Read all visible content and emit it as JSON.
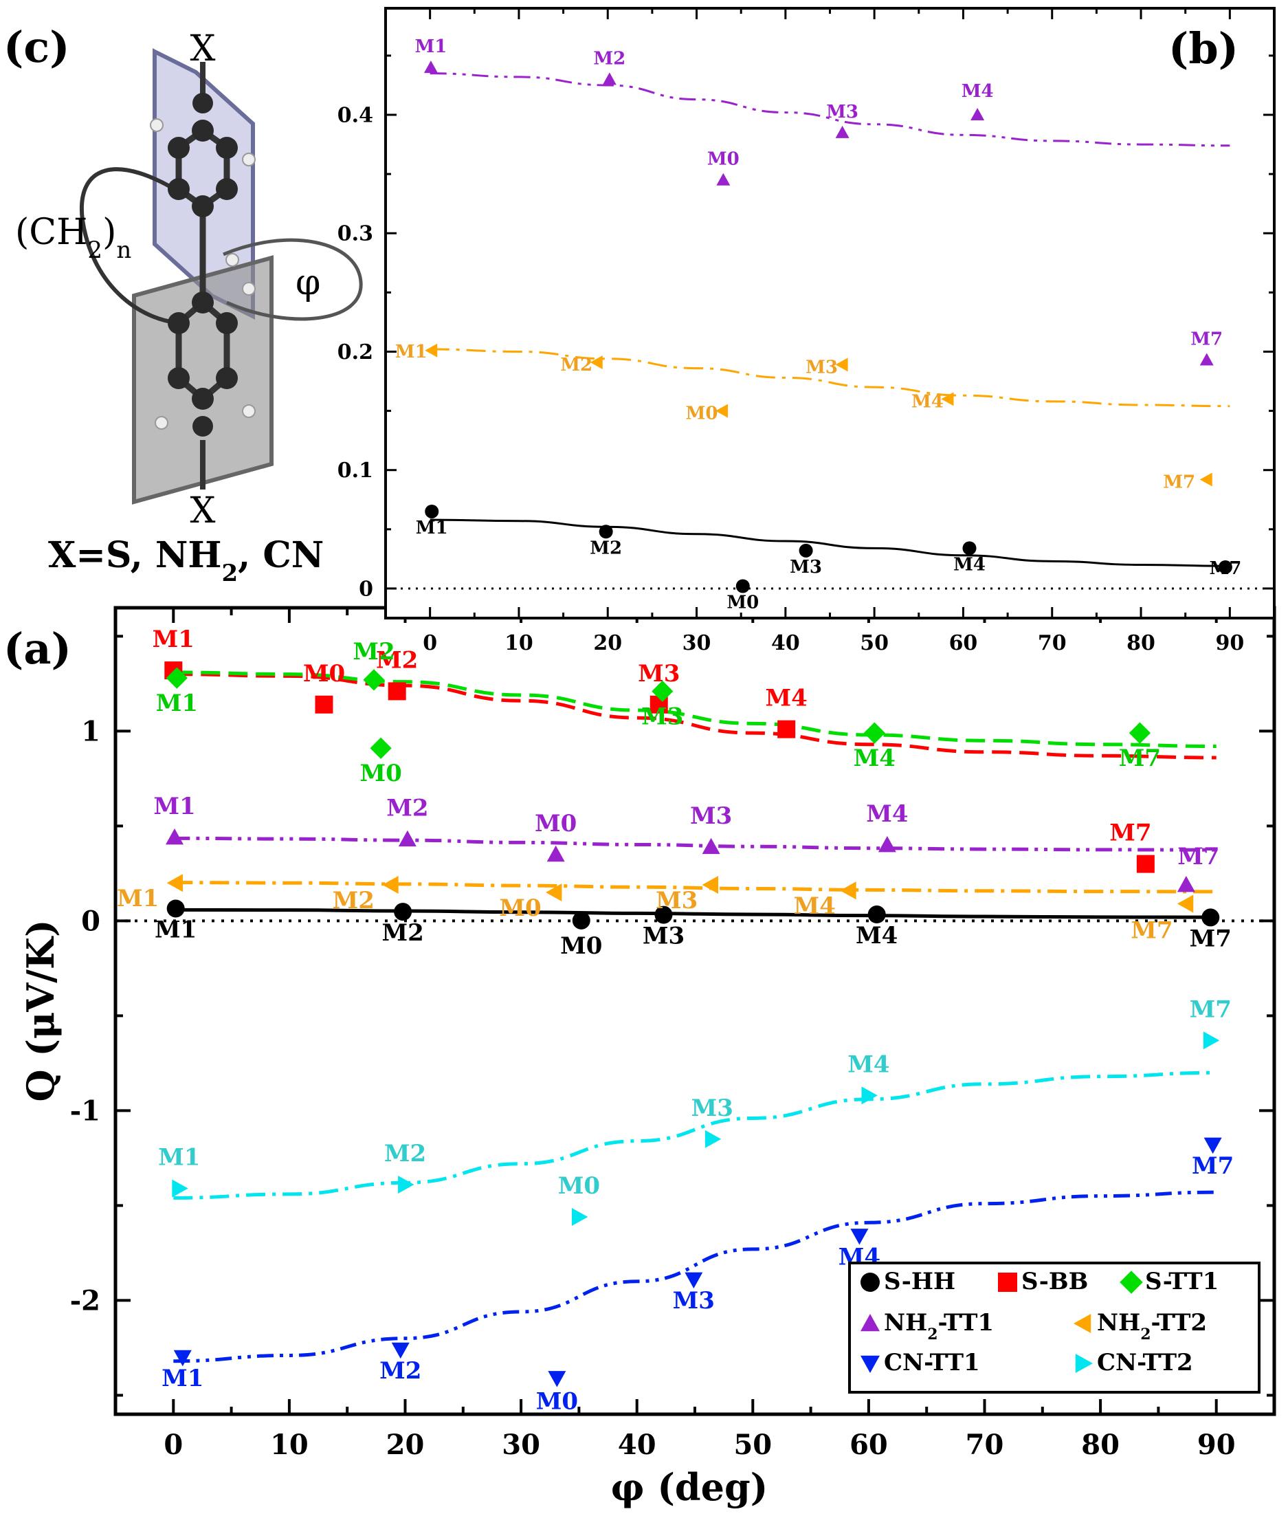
{
  "colors": {
    "S-HH": "#000000",
    "S-BB": "#ff0000",
    "S-TT1": "#00dd00",
    "NH2-TT1": "#9922cc",
    "NH2-TT2": "#ffa500",
    "CN-TT1": "#0022ee",
    "CN-TT2": "#00e5ee",
    "label_CN-TT2": "#33cccc",
    "label_S-TT1": "#00cc00",
    "label_NH2-TT2": "#f0a020",
    "label_NH2-TT1": "#9922cc"
  },
  "panel_c": {
    "label": "(c)",
    "x_top": "X",
    "x_bottom": "X",
    "chain_label": "(CH",
    "chain_sub": "2",
    "chain_close": ")",
    "chain_n": "n",
    "angle_label": "φ",
    "subst_text_1": "X=S, NH",
    "subst_sub": "2",
    "subst_text_2": ", CN"
  },
  "chart_data": [
    {
      "panel": "(a)",
      "type": "scatter",
      "xlabel": "φ (deg)",
      "ylabel": "Q (μV/K)",
      "xlim": [
        -5,
        95
      ],
      "ylim": [
        -2.6,
        1.65
      ],
      "xticks": [
        0,
        10,
        20,
        30,
        40,
        50,
        60,
        70,
        80,
        90
      ],
      "yticks": [
        1,
        0,
        -1,
        -2
      ],
      "ytick_labels": [
        "1",
        "0",
        "-1",
        "-2"
      ],
      "zero_line": "dotted",
      "legend": {
        "position": "bottom-right",
        "entries": [
          {
            "series": "S-HH",
            "text": "S-HH",
            "marker": "circle"
          },
          {
            "series": "S-BB",
            "text": "S-BB",
            "marker": "square"
          },
          {
            "series": "S-TT1",
            "text": "S-TT1",
            "marker": "diamond"
          },
          {
            "series": "NH2-TT1",
            "text": "NH",
            "sub": "2",
            "tail": "-TT1",
            "marker": "triangle-up"
          },
          {
            "series": "NH2-TT2",
            "text": "NH",
            "sub": "2",
            "tail": "-TT2",
            "marker": "triangle-left"
          },
          {
            "series": "CN-TT1",
            "text": "CN-TT1",
            "marker": "triangle-down"
          },
          {
            "series": "CN-TT2",
            "text": "CN-TT2",
            "marker": "triangle-right"
          }
        ]
      },
      "series": [
        {
          "name": "S-HH",
          "marker": "circle",
          "line": "solid",
          "points": [
            {
              "label": "M1",
              "x": 0.2,
              "y": 0.065
            },
            {
              "label": "M2",
              "x": 19.8,
              "y": 0.048
            },
            {
              "label": "M0",
              "x": 35.2,
              "y": 0.002
            },
            {
              "label": "M3",
              "x": 42.3,
              "y": 0.032
            },
            {
              "label": "M4",
              "x": 60.7,
              "y": 0.034
            },
            {
              "label": "M7",
              "x": 89.5,
              "y": 0.018
            }
          ],
          "fit": {
            "x": [
              0,
              10,
              20,
              30,
              40,
              50,
              60,
              70,
              80,
              90
            ],
            "y": [
              0.058,
              0.057,
              0.052,
              0.046,
              0.04,
              0.034,
              0.028,
              0.023,
              0.02,
              0.019
            ]
          }
        },
        {
          "name": "S-BB",
          "marker": "square",
          "line": "dashed",
          "points": [
            {
              "label": "M1",
              "x": 0.0,
              "y": 1.32
            },
            {
              "label": "M0",
              "x": 13.0,
              "y": 1.14
            },
            {
              "label": "M2",
              "x": 19.3,
              "y": 1.21
            },
            {
              "label": "M3",
              "x": 41.9,
              "y": 1.14
            },
            {
              "label": "M4",
              "x": 52.9,
              "y": 1.01
            },
            {
              "label": "M7",
              "x": 83.9,
              "y": 0.3
            }
          ],
          "fit": {
            "x": [
              0,
              10,
              20,
              30,
              40,
              50,
              60,
              70,
              80,
              90
            ],
            "y": [
              1.3,
              1.29,
              1.24,
              1.16,
              1.07,
              0.99,
              0.93,
              0.89,
              0.87,
              0.86
            ]
          }
        },
        {
          "name": "S-TT1",
          "marker": "diamond",
          "line": "dashed",
          "points": [
            {
              "label": "M1",
              "x": 0.3,
              "y": 1.28
            },
            {
              "label": "M2",
              "x": 17.3,
              "y": 1.27
            },
            {
              "label": "M0",
              "x": 17.9,
              "y": 0.91
            },
            {
              "label": "M3",
              "x": 42.2,
              "y": 1.21
            },
            {
              "label": "M4",
              "x": 60.5,
              "y": 0.99
            },
            {
              "label": "M7",
              "x": 83.4,
              "y": 0.99
            }
          ],
          "fit": {
            "x": [
              0,
              10,
              20,
              30,
              40,
              50,
              60,
              70,
              80,
              90
            ],
            "y": [
              1.31,
              1.3,
              1.26,
              1.19,
              1.11,
              1.04,
              0.98,
              0.95,
              0.93,
              0.92
            ]
          }
        },
        {
          "name": "NH2-TT1",
          "marker": "triangle-up",
          "line": "dash-dot-dot",
          "points": [
            {
              "label": "M1",
              "x": 0.1,
              "y": 0.44
            },
            {
              "label": "M2",
              "x": 20.2,
              "y": 0.43
            },
            {
              "label": "M0",
              "x": 33.0,
              "y": 0.35
            },
            {
              "label": "M3",
              "x": 46.4,
              "y": 0.39
            },
            {
              "label": "M4",
              "x": 61.6,
              "y": 0.4
            },
            {
              "label": "M7",
              "x": 87.4,
              "y": 0.19
            }
          ],
          "fit": {
            "x": [
              0,
              10,
              20,
              30,
              40,
              50,
              60,
              70,
              80,
              90
            ],
            "y": [
              0.435,
              0.432,
              0.425,
              0.413,
              0.402,
              0.392,
              0.383,
              0.378,
              0.375,
              0.374
            ]
          }
        },
        {
          "name": "NH2-TT2",
          "marker": "triangle-left",
          "line": "dash-dot",
          "points": [
            {
              "label": "M1",
              "x": 0.2,
              "y": 0.2
            },
            {
              "label": "M2",
              "x": 18.8,
              "y": 0.19
            },
            {
              "label": "M0",
              "x": 32.9,
              "y": 0.15
            },
            {
              "label": "M3",
              "x": 46.4,
              "y": 0.19
            },
            {
              "label": "M4",
              "x": 58.3,
              "y": 0.16
            },
            {
              "label": "M7",
              "x": 87.4,
              "y": 0.09
            }
          ],
          "fit": {
            "x": [
              0,
              10,
              20,
              30,
              40,
              50,
              60,
              70,
              80,
              90
            ],
            "y": [
              0.202,
              0.2,
              0.194,
              0.186,
              0.178,
              0.17,
              0.163,
              0.158,
              0.155,
              0.154
            ]
          }
        },
        {
          "name": "CN-TT1",
          "marker": "triangle-down",
          "line": "dash-dot-dot",
          "points": [
            {
              "label": "M1",
              "x": 0.8,
              "y": -2.3
            },
            {
              "label": "M2",
              "x": 19.6,
              "y": -2.26
            },
            {
              "label": "M0",
              "x": 33.1,
              "y": -2.41
            },
            {
              "label": "M3",
              "x": 44.9,
              "y": -1.89
            },
            {
              "label": "M4",
              "x": 59.2,
              "y": -1.66
            },
            {
              "label": "M7",
              "x": 89.7,
              "y": -1.18
            }
          ],
          "fit": {
            "x": [
              0,
              10,
              20,
              30,
              40,
              50,
              60,
              70,
              80,
              90
            ],
            "y": [
              -2.32,
              -2.29,
              -2.2,
              -2.06,
              -1.9,
              -1.73,
              -1.59,
              -1.49,
              -1.45,
              -1.43
            ]
          }
        },
        {
          "name": "CN-TT2",
          "marker": "triangle-right",
          "line": "dash-dot",
          "points": [
            {
              "label": "M1",
              "x": 0.5,
              "y": -1.41
            },
            {
              "label": "M2",
              "x": 20.0,
              "y": -1.39
            },
            {
              "label": "M0",
              "x": 35.0,
              "y": -1.56
            },
            {
              "label": "M3",
              "x": 46.5,
              "y": -1.15
            },
            {
              "label": "M4",
              "x": 60.0,
              "y": -0.92
            },
            {
              "label": "M7",
              "x": 89.5,
              "y": -0.63
            }
          ],
          "fit": {
            "x": [
              0,
              10,
              20,
              30,
              40,
              50,
              60,
              70,
              80,
              90
            ],
            "y": [
              -1.46,
              -1.44,
              -1.38,
              -1.28,
              -1.16,
              -1.04,
              -0.94,
              -0.86,
              -0.82,
              -0.8
            ]
          }
        }
      ]
    },
    {
      "panel": "(b)",
      "type": "scatter",
      "xlabel": "",
      "ylabel": "",
      "xlim": [
        -5,
        95
      ],
      "ylim": [
        -0.025,
        0.49
      ],
      "xticks": [
        0,
        10,
        20,
        30,
        40,
        50,
        60,
        70,
        80,
        90
      ],
      "yticks": [
        0,
        0.1,
        0.2,
        0.3,
        0.4
      ],
      "ytick_labels": [
        "0",
        "0.1",
        "0.2",
        "0.3",
        "0.4"
      ],
      "zero_line": "dotted",
      "series": [
        {
          "name": "S-HH",
          "marker": "circle",
          "line": "solid",
          "points": [
            {
              "label": "M1",
              "x": 0.2,
              "y": 0.065
            },
            {
              "label": "M2",
              "x": 19.8,
              "y": 0.048
            },
            {
              "label": "M0",
              "x": 35.2,
              "y": 0.002
            },
            {
              "label": "M3",
              "x": 42.3,
              "y": 0.032
            },
            {
              "label": "M4",
              "x": 60.7,
              "y": 0.034
            },
            {
              "label": "M7",
              "x": 89.5,
              "y": 0.018
            }
          ],
          "fit": {
            "x": [
              0,
              10,
              20,
              30,
              40,
              50,
              60,
              70,
              80,
              90
            ],
            "y": [
              0.058,
              0.057,
              0.052,
              0.046,
              0.04,
              0.034,
              0.028,
              0.023,
              0.02,
              0.019
            ]
          }
        },
        {
          "name": "NH2-TT1",
          "marker": "triangle-up",
          "line": "dash-dot-dot",
          "points": [
            {
              "label": "M1",
              "x": 0.1,
              "y": 0.44
            },
            {
              "label": "M2",
              "x": 20.2,
              "y": 0.43
            },
            {
              "label": "M0",
              "x": 33.0,
              "y": 0.345
            },
            {
              "label": "M3",
              "x": 46.4,
              "y": 0.385
            },
            {
              "label": "M4",
              "x": 61.6,
              "y": 0.4
            },
            {
              "label": "M7",
              "x": 87.4,
              "y": 0.193
            }
          ],
          "fit": {
            "x": [
              0,
              10,
              20,
              30,
              40,
              50,
              60,
              70,
              80,
              90
            ],
            "y": [
              0.435,
              0.432,
              0.425,
              0.413,
              0.402,
              0.392,
              0.383,
              0.378,
              0.375,
              0.374
            ]
          }
        },
        {
          "name": "NH2-TT2",
          "marker": "triangle-left",
          "line": "dash-dot",
          "points": [
            {
              "label": "M1",
              "x": 0.2,
              "y": 0.201
            },
            {
              "label": "M2",
              "x": 18.8,
              "y": 0.191
            },
            {
              "label": "M0",
              "x": 32.9,
              "y": 0.15
            },
            {
              "label": "M3",
              "x": 46.4,
              "y": 0.189
            },
            {
              "label": "M4",
              "x": 58.3,
              "y": 0.16
            },
            {
              "label": "M7",
              "x": 87.4,
              "y": 0.092
            }
          ],
          "fit": {
            "x": [
              0,
              10,
              20,
              30,
              40,
              50,
              60,
              70,
              80,
              90
            ],
            "y": [
              0.202,
              0.2,
              0.194,
              0.186,
              0.178,
              0.17,
              0.163,
              0.158,
              0.155,
              0.154
            ]
          }
        }
      ]
    }
  ]
}
